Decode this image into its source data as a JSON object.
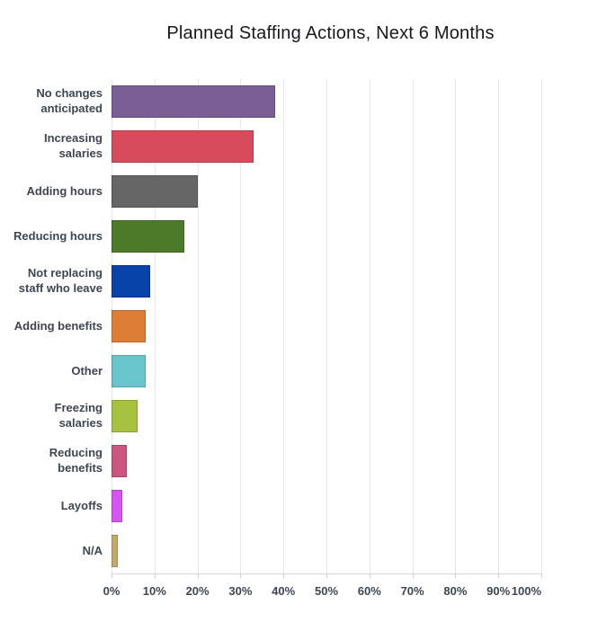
{
  "chart_data": {
    "type": "bar",
    "orientation": "horizontal",
    "title": "Planned Staffing Actions, Next 6 Months",
    "categories": [
      "No changes anticipated",
      "Increasing salaries",
      "Adding hours",
      "Reducing hours",
      "Not replacing staff who leave",
      "Adding benefits",
      "Other",
      "Freezing salaries",
      "Reducing benefits",
      "Layoffs",
      "N/A"
    ],
    "label_lines": [
      [
        "No changes",
        "anticipated"
      ],
      [
        "Increasing",
        "salaries"
      ],
      [
        "Adding hours"
      ],
      [
        "Reducing hours"
      ],
      [
        "Not replacing",
        "staff who leave"
      ],
      [
        "Adding benefits"
      ],
      [
        "Other"
      ],
      [
        "Freezing",
        "salaries"
      ],
      [
        "Reducing",
        "benefits"
      ],
      [
        "Layoffs"
      ],
      [
        "N/A"
      ]
    ],
    "values": [
      38,
      33,
      20,
      17,
      9,
      8,
      8,
      6,
      3.5,
      2.5,
      1.5
    ],
    "colors": [
      "#7A5F96",
      "#D84B5D",
      "#666666",
      "#4C7A28",
      "#0742A8",
      "#DC7E35",
      "#68C5CC",
      "#A5C13E",
      "#C95580",
      "#D854F2",
      "#C3AA6A"
    ],
    "x_ticks": [
      "0%",
      "10%",
      "20%",
      "30%",
      "40%",
      "50%",
      "60%",
      "70%",
      "80%",
      "90%",
      "100%"
    ],
    "xlim": [
      0,
      100
    ],
    "xlabel": "",
    "ylabel": "",
    "grid": "vertical",
    "legend": "none",
    "axis_text_color": "#3E4652",
    "gridline_color": "#E8E8E8"
  }
}
